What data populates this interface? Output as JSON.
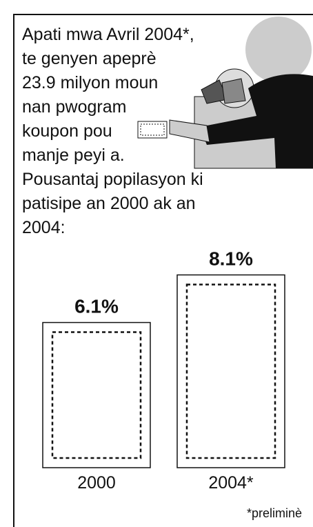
{
  "chart_data": {
    "type": "bar",
    "intro_lines": [
      "Apati mwa Avril 2004*,",
      "te genyen apeprè",
      "23.9 milyon moun",
      "nan pwogram",
      "koupon pou",
      "manje peyi a.",
      "Pousantaj popilasyon ki",
      "patisipe an 2000 ak an",
      "2004:"
    ],
    "categories": [
      "2000",
      "2004*"
    ],
    "values": [
      6.1,
      8.1
    ],
    "value_labels": [
      "6.1%",
      "8.1%"
    ],
    "note": "*preliminè"
  }
}
